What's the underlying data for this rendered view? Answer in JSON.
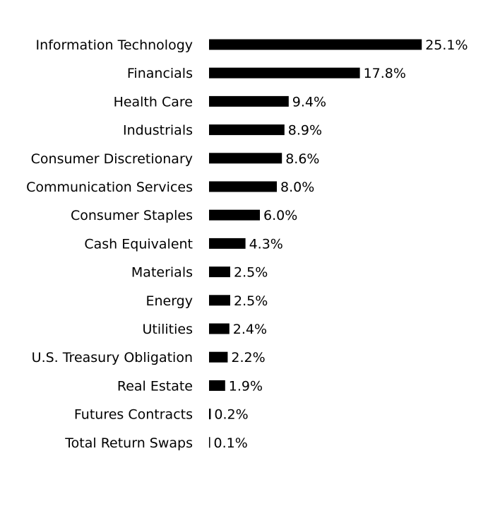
{
  "chart_data": {
    "type": "bar",
    "orientation": "horizontal",
    "categories": [
      "Information Technology",
      "Financials",
      "Health Care",
      "Industrials",
      "Consumer Discretionary",
      "Communication Services",
      "Consumer Staples",
      "Cash Equivalent",
      "Materials",
      "Energy",
      "Utilities",
      "U.S. Treasury Obligation",
      "Real Estate",
      "Futures Contracts",
      "Total Return Swaps"
    ],
    "values": [
      25.1,
      17.8,
      9.4,
      8.9,
      8.6,
      8.0,
      6.0,
      4.3,
      2.5,
      2.5,
      2.4,
      2.2,
      1.9,
      0.2,
      0.1
    ],
    "value_labels": [
      "25.1%",
      "17.8%",
      "9.4%",
      "8.9%",
      "8.6%",
      "8.0%",
      "6.0%",
      "4.3%",
      "2.5%",
      "2.5%",
      "2.4%",
      "2.2%",
      "1.9%",
      "0.2%",
      "0.1%"
    ],
    "bar_color": "#000000",
    "grid": false,
    "legend": false
  }
}
